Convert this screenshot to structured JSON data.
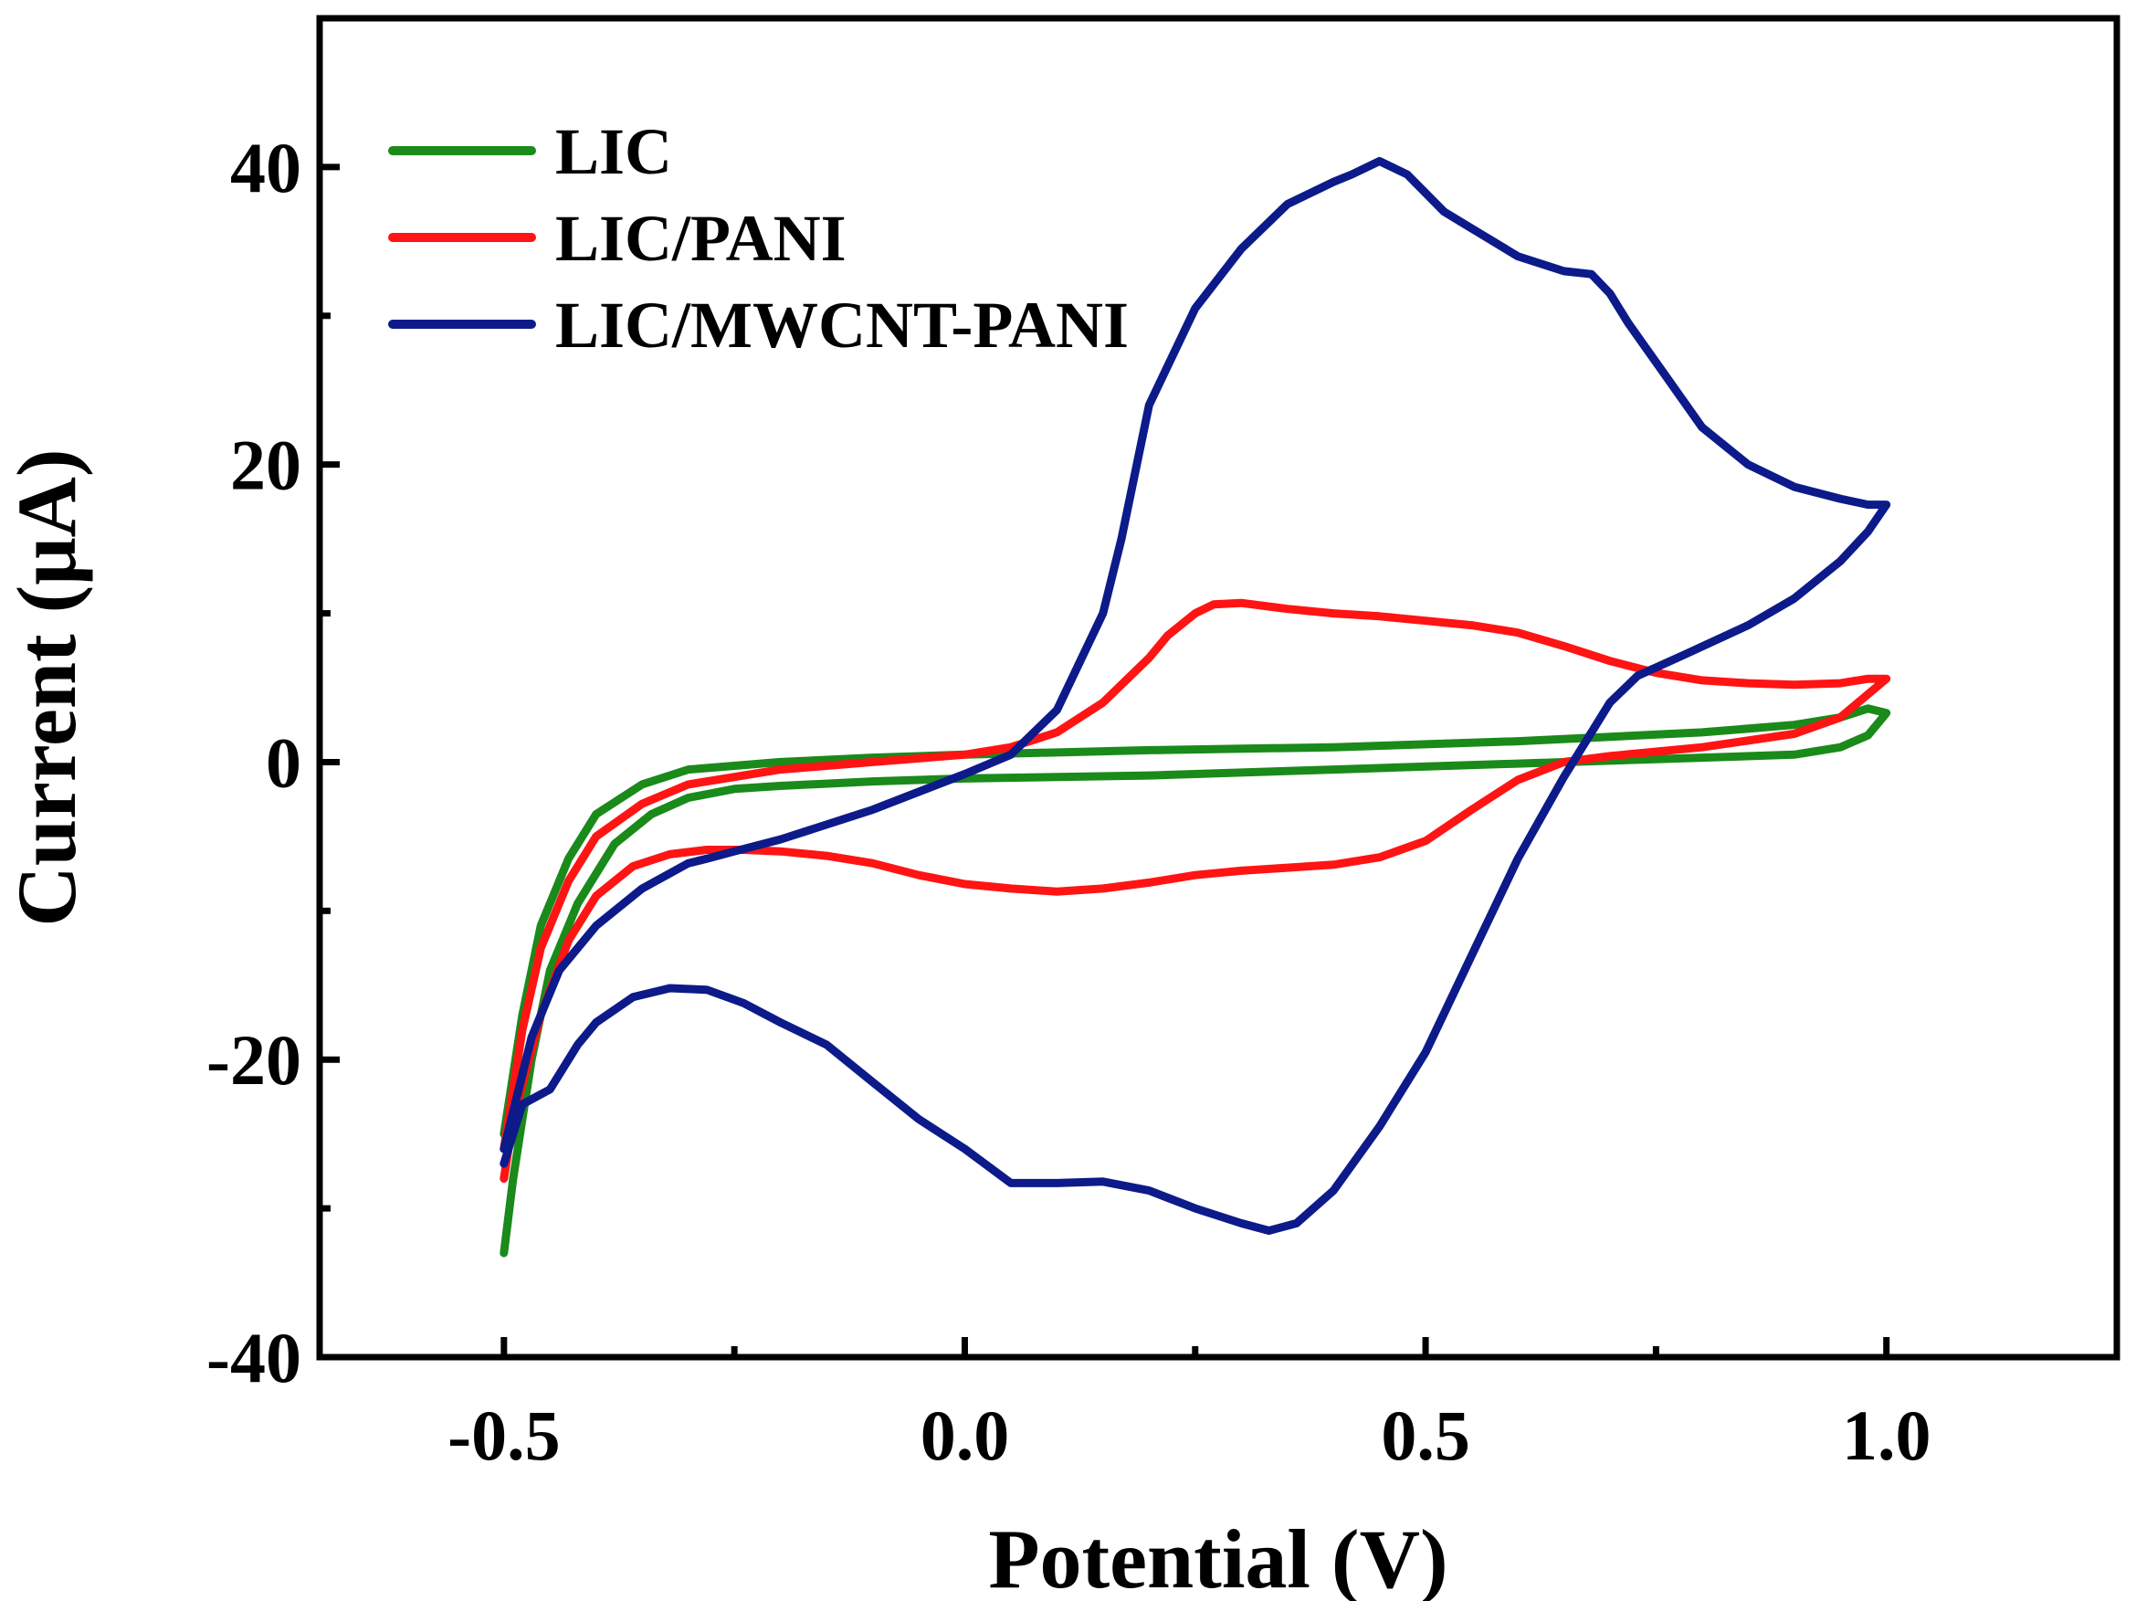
{
  "chart_data": {
    "type": "line",
    "title": "",
    "xlabel": "Potential (V)",
    "ylabel": "Current (μA)",
    "xlim": [
      -0.7,
      1.25
    ],
    "ylim": [
      -40,
      50
    ],
    "xticks": [
      -0.5,
      0.0,
      0.5,
      1.0
    ],
    "xtick_labels": [
      "-0.5",
      "0.0",
      "0.5",
      "1.0"
    ],
    "xminor": [
      -0.25,
      0.25,
      0.75,
      1.25
    ],
    "yticks": [
      -40,
      -20,
      0,
      20,
      40
    ],
    "ytick_labels": [
      "-40",
      "-20",
      "0",
      "20",
      "40"
    ],
    "yminor": [
      -30,
      -10,
      10,
      30
    ],
    "legend_position": "top-left",
    "series": [
      {
        "name": "LIC",
        "color": "#1a8a1a",
        "x": [
          -0.5,
          -0.49,
          -0.47,
          -0.45,
          -0.42,
          -0.38,
          -0.34,
          -0.3,
          -0.25,
          -0.2,
          -0.1,
          0.0,
          0.2,
          0.4,
          0.6,
          0.8,
          0.9,
          0.95,
          0.98,
          1.0,
          0.98,
          0.95,
          0.9,
          0.8,
          0.6,
          0.4,
          0.2,
          0.0,
          -0.1,
          -0.2,
          -0.3,
          -0.35,
          -0.4,
          -0.43,
          -0.46,
          -0.48,
          -0.5
        ],
        "y": [
          -33,
          -28,
          -20,
          -14,
          -9.5,
          -5.5,
          -3.5,
          -2.4,
          -1.8,
          -1.6,
          -1.3,
          -1.1,
          -0.9,
          -0.5,
          -0.1,
          0.3,
          0.5,
          1.0,
          1.8,
          3.3,
          3.6,
          3.0,
          2.5,
          2.0,
          1.4,
          1.0,
          0.8,
          0.5,
          0.3,
          0.0,
          -0.5,
          -1.5,
          -3.5,
          -6.5,
          -11,
          -17,
          -25
        ]
      },
      {
        "name": "LIC/PANI",
        "color": "#ff1414",
        "x": [
          -0.5,
          -0.49,
          -0.46,
          -0.43,
          -0.4,
          -0.36,
          -0.32,
          -0.28,
          -0.24,
          -0.2,
          -0.15,
          -0.1,
          -0.05,
          0.0,
          0.05,
          0.1,
          0.15,
          0.2,
          0.25,
          0.3,
          0.35,
          0.4,
          0.45,
          0.5,
          0.55,
          0.6,
          0.65,
          0.7,
          0.8,
          0.9,
          0.95,
          1.0,
          0.98,
          0.95,
          0.9,
          0.85,
          0.8,
          0.75,
          0.7,
          0.65,
          0.6,
          0.55,
          0.5,
          0.45,
          0.4,
          0.35,
          0.3,
          0.27,
          0.25,
          0.22,
          0.2,
          0.15,
          0.1,
          0.05,
          0.0,
          -0.1,
          -0.2,
          -0.3,
          -0.35,
          -0.4,
          -0.43,
          -0.46,
          -0.48,
          -0.5
        ],
        "y": [
          -28,
          -24,
          -17,
          -12,
          -9,
          -7,
          -6.2,
          -5.9,
          -5.9,
          -6.0,
          -6.3,
          -6.8,
          -7.6,
          -8.2,
          -8.5,
          -8.7,
          -8.5,
          -8.1,
          -7.6,
          -7.3,
          -7.1,
          -6.9,
          -6.4,
          -5.3,
          -3.2,
          -1.2,
          0.0,
          0.4,
          1.0,
          1.9,
          3.0,
          5.6,
          5.6,
          5.3,
          5.2,
          5.3,
          5.5,
          6.0,
          6.8,
          7.8,
          8.7,
          9.2,
          9.5,
          9.8,
          10.0,
          10.3,
          10.7,
          10.6,
          10.0,
          8.5,
          7.0,
          4.0,
          2.0,
          1.0,
          0.5,
          0.0,
          -0.5,
          -1.5,
          -2.8,
          -5.0,
          -8.0,
          -12.5,
          -18,
          -26
        ]
      },
      {
        "name": "LIC/MWCNT-PANI",
        "color": "#0d1a8a",
        "x": [
          -0.5,
          -0.48,
          -0.45,
          -0.42,
          -0.4,
          -0.36,
          -0.32,
          -0.28,
          -0.24,
          -0.2,
          -0.15,
          -0.1,
          -0.05,
          0.0,
          0.05,
          0.1,
          0.15,
          0.2,
          0.25,
          0.3,
          0.33,
          0.36,
          0.4,
          0.45,
          0.5,
          0.55,
          0.6,
          0.65,
          0.7,
          0.73,
          0.78,
          0.85,
          0.9,
          0.95,
          0.98,
          1.0,
          0.98,
          0.95,
          0.9,
          0.85,
          0.8,
          0.76,
          0.72,
          0.7,
          0.68,
          0.65,
          0.6,
          0.56,
          0.52,
          0.48,
          0.45,
          0.42,
          0.4,
          0.35,
          0.3,
          0.25,
          0.2,
          0.17,
          0.15,
          0.1,
          0.05,
          0.0,
          -0.05,
          -0.1,
          -0.15,
          -0.2,
          -0.25,
          -0.28,
          -0.3,
          -0.35,
          -0.4,
          -0.44,
          -0.47,
          -0.5
        ],
        "y": [
          -27,
          -23,
          -22,
          -19,
          -17.5,
          -15.8,
          -15.2,
          -15.3,
          -16.2,
          -17.5,
          -19,
          -21.5,
          -24,
          -26,
          -28.3,
          -28.3,
          -28.2,
          -28.8,
          -30,
          -31,
          -31.5,
          -31,
          -28.8,
          -24.5,
          -19.5,
          -13,
          -6.5,
          -1,
          4,
          5.8,
          7.2,
          9.2,
          11,
          13.5,
          15.5,
          17.3,
          17.3,
          17.7,
          18.5,
          20,
          22.5,
          26,
          29.5,
          31.5,
          32.8,
          33,
          34,
          35.5,
          37,
          39.5,
          40.4,
          39.5,
          39,
          37.5,
          34.5,
          30.5,
          24,
          15,
          10,
          3.5,
          0.5,
          -0.8,
          -2,
          -3.2,
          -4.2,
          -5.2,
          -6.0,
          -6.5,
          -6.8,
          -8.5,
          -11,
          -14,
          -18.5,
          -26
        ]
      }
    ]
  }
}
